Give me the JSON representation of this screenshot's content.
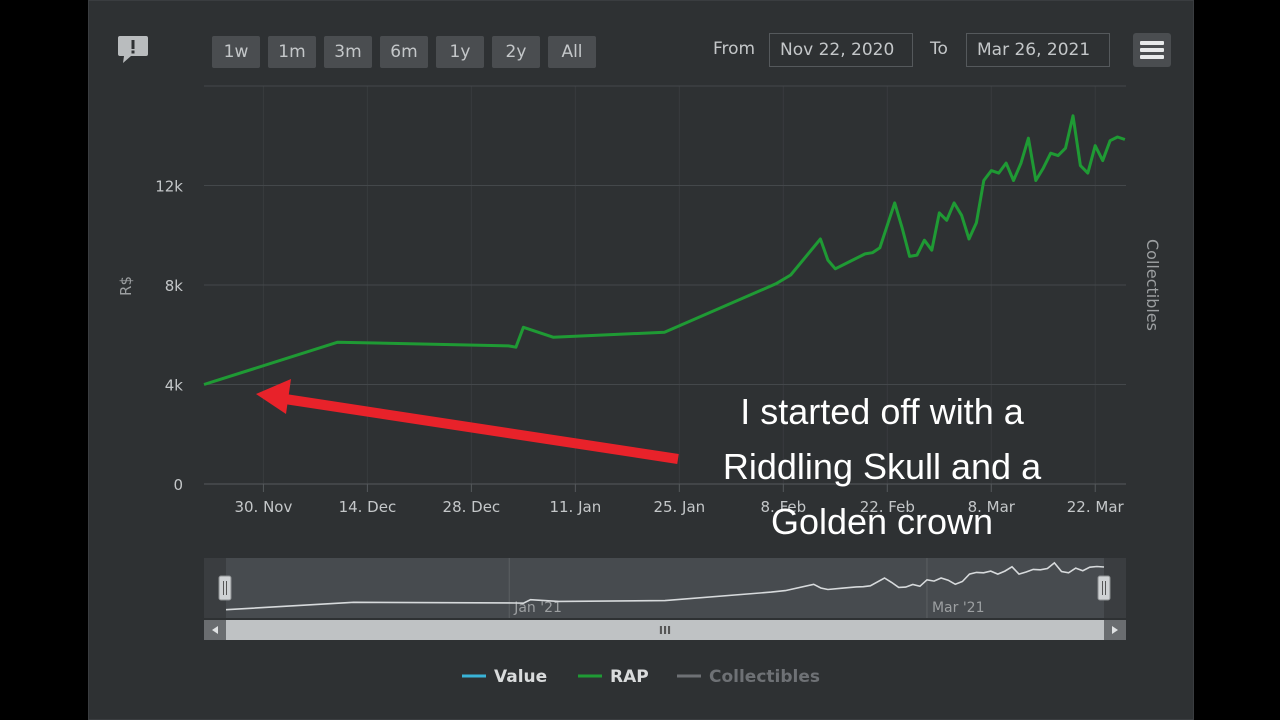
{
  "range_buttons": [
    "1w",
    "1m",
    "3m",
    "6m",
    "1y",
    "2y",
    "All"
  ],
  "range_from": {
    "label": "From",
    "value": "Nov 22, 2020"
  },
  "range_to": {
    "label": "To",
    "value": "Mar 26, 2021"
  },
  "icons": {
    "feedback": "comment-alert-icon",
    "menu": "hamburger-menu-icon"
  },
  "colors": {
    "background": "#2e3133",
    "value": "#39b3d7",
    "rap": "#1f9a34",
    "collectibles": "#6e7175",
    "arrow": "#e8222a"
  },
  "chart_data": {
    "type": "line",
    "title": "",
    "ylabel": "R$",
    "y2label": "Collectibles",
    "ylim": [
      0,
      16000
    ],
    "xlim": [
      "2020-11-22",
      "2021-03-26"
    ],
    "y_ticks": [
      {
        "value": 0,
        "label": "0"
      },
      {
        "value": 4000,
        "label": "4k"
      },
      {
        "value": 8000,
        "label": "8k"
      },
      {
        "value": 12000,
        "label": "12k"
      }
    ],
    "x_ticks": [
      {
        "date": "2020-11-30",
        "label": "30. Nov"
      },
      {
        "date": "2020-12-14",
        "label": "14. Dec"
      },
      {
        "date": "2020-12-28",
        "label": "28. Dec"
      },
      {
        "date": "2021-01-11",
        "label": "11. Jan"
      },
      {
        "date": "2021-01-25",
        "label": "25. Jan"
      },
      {
        "date": "2021-02-08",
        "label": "8. Feb"
      },
      {
        "date": "2021-02-22",
        "label": "22. Feb"
      },
      {
        "date": "2021-03-08",
        "label": "8. Mar"
      },
      {
        "date": "2021-03-22",
        "label": "22. Mar"
      }
    ],
    "series": [
      {
        "name": "RAP",
        "color": "#1f9a34",
        "points": [
          [
            "2020-11-22",
            4000
          ],
          [
            "2020-12-10",
            5700
          ],
          [
            "2021-01-02",
            5550
          ],
          [
            "2021-01-03",
            5500
          ],
          [
            "2021-01-04",
            6300
          ],
          [
            "2021-01-08",
            5900
          ],
          [
            "2021-01-23",
            6100
          ],
          [
            "2021-02-07",
            8050
          ],
          [
            "2021-02-09",
            8400
          ],
          [
            "2021-02-13",
            9850
          ],
          [
            "2021-02-14",
            9000
          ],
          [
            "2021-02-15",
            8650
          ],
          [
            "2021-02-17",
            8950
          ],
          [
            "2021-02-19",
            9250
          ],
          [
            "2021-02-20",
            9300
          ],
          [
            "2021-02-21",
            9500
          ],
          [
            "2021-02-23",
            11300
          ],
          [
            "2021-02-24",
            10300
          ],
          [
            "2021-02-25",
            9150
          ],
          [
            "2021-02-26",
            9200
          ],
          [
            "2021-02-27",
            9800
          ],
          [
            "2021-02-28",
            9400
          ],
          [
            "2021-03-01",
            10900
          ],
          [
            "2021-03-02",
            10600
          ],
          [
            "2021-03-03",
            11300
          ],
          [
            "2021-03-04",
            10800
          ],
          [
            "2021-03-05",
            9850
          ],
          [
            "2021-03-06",
            10500
          ],
          [
            "2021-03-07",
            12200
          ],
          [
            "2021-03-08",
            12600
          ],
          [
            "2021-03-09",
            12500
          ],
          [
            "2021-03-10",
            12900
          ],
          [
            "2021-03-11",
            12200
          ],
          [
            "2021-03-12",
            12900
          ],
          [
            "2021-03-13",
            13900
          ],
          [
            "2021-03-14",
            12200
          ],
          [
            "2021-03-15",
            12700
          ],
          [
            "2021-03-16",
            13300
          ],
          [
            "2021-03-17",
            13200
          ],
          [
            "2021-03-18",
            13500
          ],
          [
            "2021-03-19",
            14800
          ],
          [
            "2021-03-20",
            12800
          ],
          [
            "2021-03-21",
            12500
          ],
          [
            "2021-03-22",
            13600
          ],
          [
            "2021-03-23",
            13000
          ],
          [
            "2021-03-24",
            13800
          ],
          [
            "2021-03-25",
            13950
          ],
          [
            "2021-03-26",
            13850
          ]
        ]
      }
    ],
    "legend": {
      "placement": "bottom-center",
      "items": [
        {
          "name": "Value",
          "color": "#39b3d7",
          "active": true
        },
        {
          "name": "RAP",
          "color": "#1f9a34",
          "active": true
        },
        {
          "name": "Collectibles",
          "color": "#6e7175",
          "active": false
        }
      ]
    },
    "grid": true
  },
  "navigator": {
    "labels": [
      {
        "date": "2021-01-01",
        "label": "Jan '21"
      },
      {
        "date": "2021-03-01",
        "label": "Mar '21"
      }
    ],
    "grip": "III"
  },
  "annotation": {
    "lines": [
      "I started off with a",
      "Riddling Skull and a",
      "Golden crown"
    ]
  }
}
